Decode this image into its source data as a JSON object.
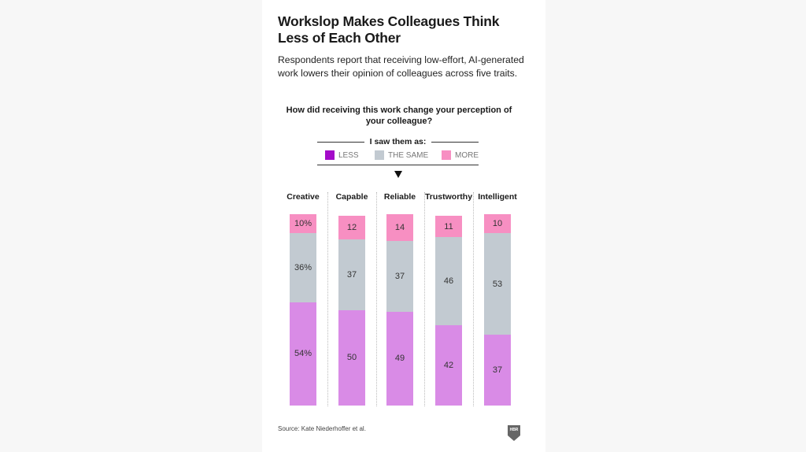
{
  "title": "Workslop Makes Colleagues Think Less of Each Other",
  "subtitle": "Respondents report that receiving low-effort, AI-generated work lowers their opinion of colleagues across five traits.",
  "question": "How did receiving this work change your perception of your colleague?",
  "legend": {
    "heading": "I saw them as:",
    "items": [
      {
        "label": "LESS",
        "color": "#a40bc9"
      },
      {
        "label": "THE SAME",
        "color": "#c2cad1"
      },
      {
        "label": "MORE",
        "color": "#f78fc2"
      }
    ]
  },
  "chart_data": {
    "type": "bar",
    "stacked": true,
    "orientation": "vertical",
    "categories": [
      "Creative",
      "Capable",
      "Reliable",
      "Trustworthy",
      "Intelligent"
    ],
    "series": [
      {
        "name": "LESS",
        "color": "#d98be6",
        "values": [
          54,
          50,
          49,
          42,
          37
        ]
      },
      {
        "name": "THE SAME",
        "color": "#c2cad1",
        "values": [
          36,
          37,
          37,
          46,
          53
        ]
      },
      {
        "name": "MORE",
        "color": "#f78fc2",
        "values": [
          10,
          12,
          14,
          11,
          10
        ]
      }
    ],
    "data_labels": [
      [
        "54%",
        "50",
        "49",
        "42",
        "37"
      ],
      [
        "36%",
        "37",
        "37",
        "46",
        "53"
      ],
      [
        "10%",
        "12",
        "14",
        "11",
        "10"
      ]
    ],
    "ylim": [
      0,
      100
    ],
    "title": "How did receiving this work change your perception of your colleague?",
    "xlabel": "",
    "ylabel": ""
  },
  "source": "Source: Kate Niederhoffer et al.",
  "logo_text": "HBR"
}
